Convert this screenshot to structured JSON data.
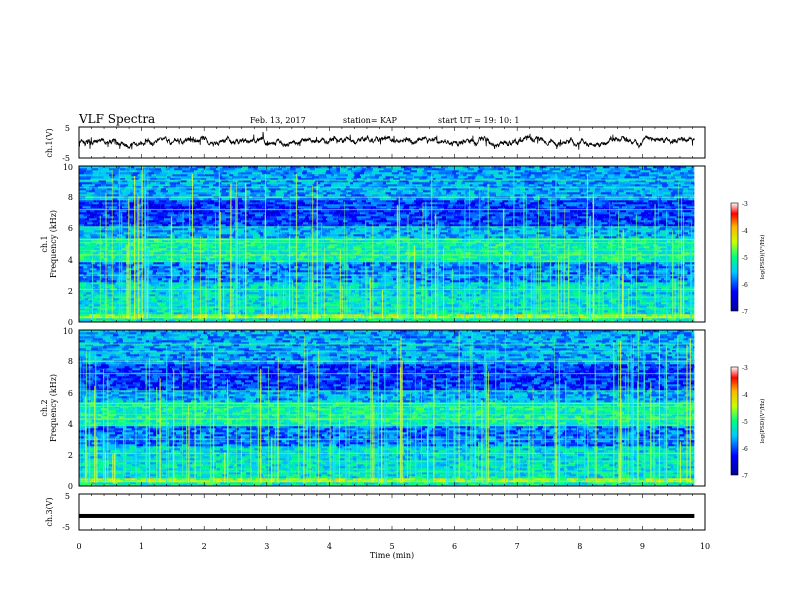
{
  "header": {
    "title": "VLF Spectra",
    "date": "Feb. 13, 2017",
    "station": "station= KAP",
    "start": "start  UT =   19: 10: 1"
  },
  "chart_data": [
    {
      "type": "line",
      "name": "ch1-waveform",
      "ylabel": "ch.1(V)",
      "ylim": [
        -5,
        5
      ],
      "yticks": [
        "5",
        "-5"
      ],
      "xlim": [
        0,
        10
      ],
      "series": [
        {
          "color": "#000000",
          "x_range": [
            0,
            9.83
          ],
          "baseline": 0.4
        }
      ]
    },
    {
      "type": "heatmap",
      "name": "ch1-spectrogram",
      "ylabel_line1": "ch.1",
      "ylabel_line2": "Frequency (kHz)",
      "xlim": [
        0,
        10
      ],
      "ylim": [
        0,
        10
      ],
      "x_range": [
        0,
        9.83
      ],
      "yticks": [
        "0",
        "2",
        "4",
        "6",
        "8",
        "10"
      ],
      "colorbar": {
        "label": "log(PSD)(V²/Hz)",
        "min": -7,
        "max": -3,
        "ticks": [
          "-3",
          "-4",
          "-5",
          "-6",
          "-7"
        ]
      }
    },
    {
      "type": "heatmap",
      "name": "ch2-spectrogram",
      "ylabel_line1": "ch.2",
      "ylabel_line2": "Frequency (kHz)",
      "xlim": [
        0,
        10
      ],
      "ylim": [
        0,
        10
      ],
      "x_range": [
        0,
        9.83
      ],
      "yticks": [
        "0",
        "2",
        "4",
        "6",
        "8",
        "10"
      ],
      "colorbar": {
        "label": "log(PSD)(V²/Hz)",
        "min": -7,
        "max": -3,
        "ticks": [
          "-3",
          "-4",
          "-5",
          "-6",
          "-7"
        ]
      }
    },
    {
      "type": "line",
      "name": "ch3-waveform",
      "ylabel": "ch.3(V)",
      "ylim": [
        -5,
        5
      ],
      "yticks": [
        "5",
        "-5"
      ],
      "xlim": [
        0,
        10
      ],
      "series": [
        {
          "color": "#000000",
          "x_range": [
            0,
            9.83
          ],
          "value": -1.1
        }
      ]
    }
  ],
  "x_axis": {
    "label": "Time (min)",
    "ticks": [
      "0",
      "1",
      "2",
      "3",
      "4",
      "5",
      "6",
      "7",
      "8",
      "9",
      "10"
    ]
  }
}
